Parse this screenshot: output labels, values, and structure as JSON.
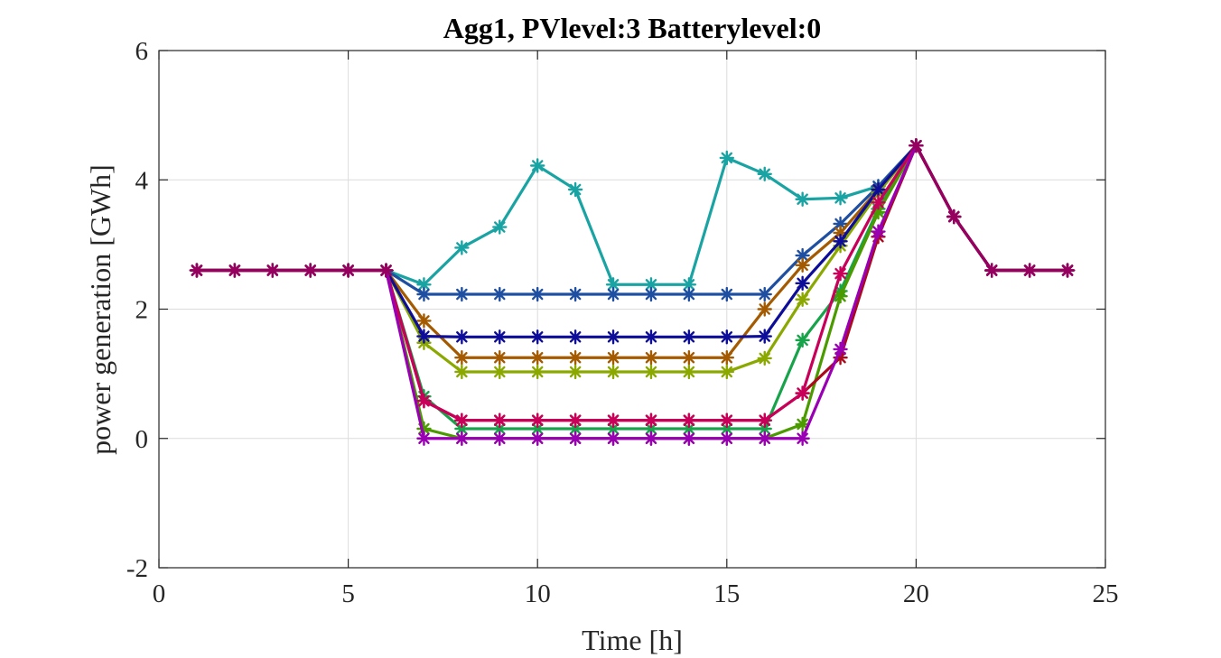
{
  "chart_data": {
    "type": "line",
    "title": "Agg1, PVlevel:3 Batterylevel:0",
    "xlabel": "Time [h]",
    "ylabel": "power generation [GWh]",
    "xlim": [
      0,
      25
    ],
    "ylim": [
      -2,
      6
    ],
    "xticks": [
      0,
      5,
      10,
      15,
      20,
      25
    ],
    "yticks": [
      -2,
      0,
      2,
      4,
      6
    ],
    "grid": true,
    "marker": "asterisk",
    "x": [
      1,
      2,
      3,
      4,
      5,
      6,
      7,
      8,
      9,
      10,
      11,
      12,
      13,
      14,
      15,
      16,
      17,
      18,
      19,
      20,
      21,
      22,
      23,
      24
    ],
    "series": [
      {
        "color": "#1aa3a3",
        "values": [
          2.6,
          2.6,
          2.6,
          2.6,
          2.6,
          2.6,
          2.38,
          2.95,
          3.27,
          4.22,
          3.85,
          2.38,
          2.38,
          2.38,
          4.34,
          4.09,
          3.7,
          3.72,
          3.9,
          4.53,
          3.43,
          2.6,
          2.6,
          2.6
        ]
      },
      {
        "color": "#1f4fa0",
        "values": [
          2.6,
          2.6,
          2.6,
          2.6,
          2.6,
          2.6,
          2.23,
          2.23,
          2.23,
          2.23,
          2.23,
          2.23,
          2.23,
          2.23,
          2.23,
          2.23,
          2.83,
          3.32,
          3.9,
          4.53,
          3.43,
          2.6,
          2.6,
          2.6
        ]
      },
      {
        "color": "#a35a00",
        "values": [
          2.6,
          2.6,
          2.6,
          2.6,
          2.6,
          2.6,
          1.82,
          1.25,
          1.25,
          1.25,
          1.25,
          1.25,
          1.25,
          1.25,
          1.25,
          2.0,
          2.68,
          3.18,
          3.85,
          4.53,
          3.43,
          2.6,
          2.6,
          2.6
        ]
      },
      {
        "color": "#8aa800",
        "values": [
          2.6,
          2.6,
          2.6,
          2.6,
          2.6,
          2.6,
          1.48,
          1.03,
          1.03,
          1.03,
          1.03,
          1.03,
          1.03,
          1.03,
          1.03,
          1.24,
          2.15,
          2.98,
          3.8,
          4.53,
          3.43,
          2.6,
          2.6,
          2.6
        ]
      },
      {
        "color": "#0d0d99",
        "values": [
          2.6,
          2.6,
          2.6,
          2.6,
          2.6,
          2.6,
          1.58,
          1.57,
          1.57,
          1.57,
          1.57,
          1.57,
          1.57,
          1.57,
          1.57,
          1.58,
          2.4,
          3.05,
          3.85,
          4.53,
          3.43,
          2.6,
          2.6,
          2.6
        ]
      },
      {
        "color": "#17a34a",
        "values": [
          2.6,
          2.6,
          2.6,
          2.6,
          2.6,
          2.6,
          0.65,
          0.15,
          0.15,
          0.15,
          0.15,
          0.15,
          0.15,
          0.15,
          0.15,
          0.15,
          1.52,
          2.28,
          3.55,
          4.53,
          3.43,
          2.6,
          2.6,
          2.6
        ]
      },
      {
        "color": "#4a9a00",
        "values": [
          2.6,
          2.6,
          2.6,
          2.6,
          2.6,
          2.6,
          0.15,
          0.0,
          0.0,
          0.0,
          0.0,
          0.0,
          0.0,
          0.0,
          0.0,
          0.0,
          0.22,
          2.2,
          3.5,
          4.53,
          3.43,
          2.6,
          2.6,
          2.6
        ]
      },
      {
        "color": "#aa0a1c",
        "values": [
          2.6,
          2.6,
          2.6,
          2.6,
          2.6,
          2.6,
          0.58,
          0.28,
          0.28,
          0.28,
          0.28,
          0.28,
          0.28,
          0.28,
          0.28,
          0.28,
          0.7,
          1.25,
          3.12,
          4.53,
          3.43,
          2.6,
          2.6,
          2.6
        ]
      },
      {
        "color": "#c8005a",
        "values": [
          2.6,
          2.6,
          2.6,
          2.6,
          2.6,
          2.6,
          0.58,
          0.28,
          0.28,
          0.28,
          0.28,
          0.28,
          0.28,
          0.28,
          0.28,
          0.28,
          0.7,
          2.55,
          3.65,
          4.53,
          3.43,
          2.6,
          2.6,
          2.6
        ]
      },
      {
        "color": "#9a00b3",
        "values": [
          2.6,
          2.6,
          2.6,
          2.6,
          2.6,
          2.6,
          0.0,
          0.0,
          0.0,
          0.0,
          0.0,
          0.0,
          0.0,
          0.0,
          0.0,
          0.0,
          0.0,
          1.38,
          3.2,
          4.53,
          3.43,
          2.6,
          2.6,
          2.6
        ]
      },
      {
        "color": "#96005e",
        "values": [
          2.6,
          2.6,
          2.6,
          2.6,
          2.6,
          2.6,
          null,
          null,
          null,
          null,
          null,
          null,
          null,
          null,
          null,
          null,
          null,
          null,
          null,
          4.53,
          3.43,
          2.6,
          2.6,
          2.6
        ]
      }
    ]
  }
}
